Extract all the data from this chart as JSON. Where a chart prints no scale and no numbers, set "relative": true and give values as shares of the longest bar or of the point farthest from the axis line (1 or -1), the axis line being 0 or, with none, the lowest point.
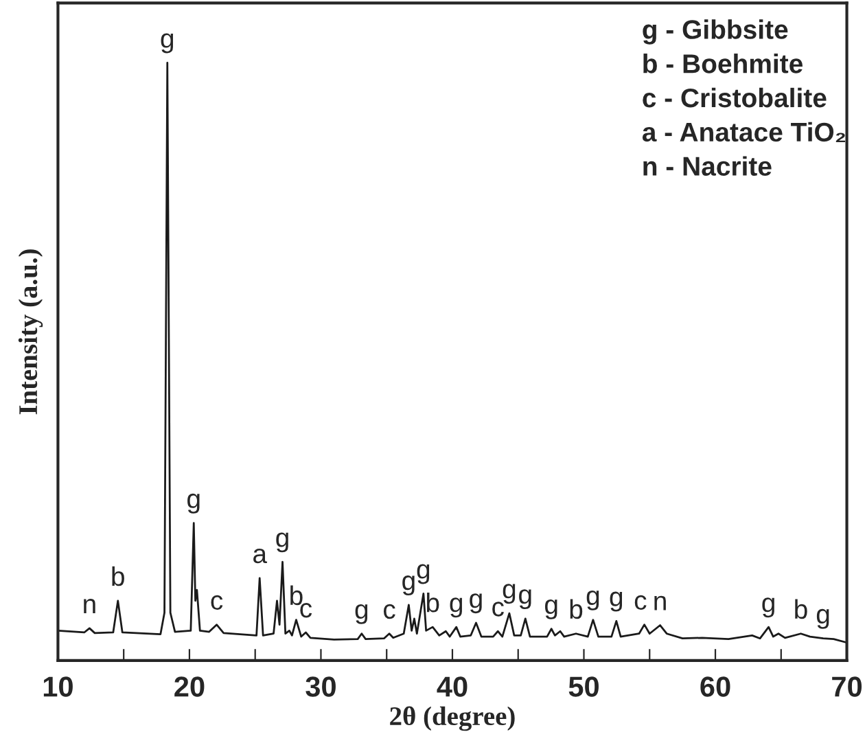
{
  "chart_data": {
    "type": "line",
    "relative": true,
    "xlabel": "2θ (degree)",
    "ylabel": "Intensity (a.u.)",
    "xlim": [
      10,
      70
    ],
    "xticks": [
      10,
      {
        "value": 15,
        "label": null
      },
      20,
      {
        "value": 25,
        "label": null
      },
      30,
      {
        "value": 35,
        "label": null
      },
      40,
      {
        "value": 45,
        "label": null
      },
      50,
      {
        "value": 55,
        "label": null
      },
      60,
      {
        "value": 65,
        "label": null
      },
      70
    ],
    "tick_labels": "x",
    "grid": false,
    "legend": false,
    "marker": "none",
    "line_style": "solid",
    "series": [
      {
        "color": "#1a1a1a",
        "x": [
          10,
          12.0,
          12.4,
          12.8,
          14.2,
          14.56,
          14.9,
          17.8,
          18.1,
          18.32,
          18.55,
          18.9,
          20.1,
          20.33,
          20.45,
          20.57,
          20.8,
          21.5,
          22.07,
          22.6,
          25.1,
          25.34,
          25.6,
          26.4,
          26.66,
          26.85,
          27.08,
          27.3,
          27.6,
          27.8,
          28.12,
          28.5,
          28.85,
          29.2,
          31,
          32.8,
          33.1,
          33.4,
          34.8,
          35.2,
          35.5,
          36.3,
          36.68,
          36.9,
          37.1,
          37.3,
          37.8,
          38.0,
          38.5,
          39.0,
          39.5,
          39.8,
          40.3,
          40.6,
          41.4,
          41.8,
          42.2,
          43.1,
          43.46,
          43.8,
          44.33,
          44.7,
          45.2,
          45.55,
          45.9,
          47.2,
          47.53,
          47.8,
          48.2,
          48.5,
          49.4,
          50.3,
          50.7,
          51.1,
          52.1,
          52.47,
          52.8,
          54.2,
          54.6,
          55.0,
          55.8,
          56.3,
          57.5,
          59,
          61,
          62.8,
          63.4,
          64.05,
          64.4,
          64.8,
          65.3,
          66.5,
          67.2,
          68.2,
          69,
          70
        ],
        "values": [
          0.05,
          0.047,
          0.054,
          0.046,
          0.047,
          0.1,
          0.047,
          0.044,
          0.08,
          1.0,
          0.08,
          0.048,
          0.05,
          0.23,
          0.1,
          0.118,
          0.05,
          0.048,
          0.06,
          0.046,
          0.042,
          0.138,
          0.042,
          0.045,
          0.1,
          0.06,
          0.165,
          0.045,
          0.05,
          0.042,
          0.068,
          0.04,
          0.047,
          0.038,
          0.035,
          0.036,
          0.045,
          0.036,
          0.037,
          0.045,
          0.038,
          0.045,
          0.093,
          0.05,
          0.07,
          0.045,
          0.112,
          0.05,
          0.056,
          0.042,
          0.049,
          0.04,
          0.056,
          0.04,
          0.042,
          0.063,
          0.04,
          0.04,
          0.049,
          0.04,
          0.079,
          0.042,
          0.042,
          0.07,
          0.04,
          0.04,
          0.053,
          0.042,
          0.049,
          0.04,
          0.045,
          0.04,
          0.068,
          0.04,
          0.04,
          0.066,
          0.04,
          0.045,
          0.06,
          0.045,
          0.059,
          0.045,
          0.037,
          0.038,
          0.036,
          0.042,
          0.037,
          0.056,
          0.04,
          0.045,
          0.038,
          0.045,
          0.04,
          0.037,
          0.036,
          0.03
        ]
      }
    ],
    "annotations": [
      "g - Gibbsite",
      "b - Boehmite",
      "c - Cristobalite",
      "a - Anatace TiO₂",
      "n - Nacrite",
      {
        "text": "n",
        "x": 12.4,
        "y": 0.054
      },
      {
        "text": "b",
        "x": 14.56,
        "y": 0.1
      },
      {
        "text": "g",
        "x": 18.32,
        "y": 1.0
      },
      {
        "text": "g",
        "x": 20.33,
        "y": 0.23
      },
      {
        "text": "c",
        "x": 22.07,
        "y": 0.06
      },
      {
        "text": "a",
        "x": 25.34,
        "y": 0.138
      },
      {
        "text": "g",
        "x": 27.08,
        "y": 0.165
      },
      {
        "text": "b",
        "x": 28.12,
        "y": 0.068
      },
      {
        "text": "c",
        "x": 28.85,
        "y": 0.047
      },
      {
        "text": "g",
        "x": 33.1,
        "y": 0.045
      },
      {
        "text": "c",
        "x": 35.2,
        "y": 0.045
      },
      {
        "text": "g",
        "x": 36.68,
        "y": 0.093
      },
      {
        "text": "g",
        "x": 37.8,
        "y": 0.112
      },
      {
        "text": "b",
        "x": 38.5,
        "y": 0.056
      },
      {
        "text": "g",
        "x": 40.3,
        "y": 0.056
      },
      {
        "text": "g",
        "x": 41.8,
        "y": 0.063
      },
      {
        "text": "c",
        "x": 43.46,
        "y": 0.049
      },
      {
        "text": "g",
        "x": 44.33,
        "y": 0.079
      },
      {
        "text": "g",
        "x": 45.55,
        "y": 0.07
      },
      {
        "text": "g",
        "x": 47.53,
        "y": 0.053
      },
      {
        "text": "b",
        "x": 49.4,
        "y": 0.045
      },
      {
        "text": "g",
        "x": 50.7,
        "y": 0.068
      },
      {
        "text": "g",
        "x": 52.47,
        "y": 0.066
      },
      {
        "text": "c",
        "x": 54.3,
        "y": 0.06
      },
      {
        "text": "n",
        "x": 55.8,
        "y": 0.059
      },
      {
        "text": "g",
        "x": 64.05,
        "y": 0.056
      },
      {
        "text": "b",
        "x": 66.5,
        "y": 0.045
      },
      {
        "text": "g",
        "x": 68.2,
        "y": 0.037
      }
    ]
  }
}
